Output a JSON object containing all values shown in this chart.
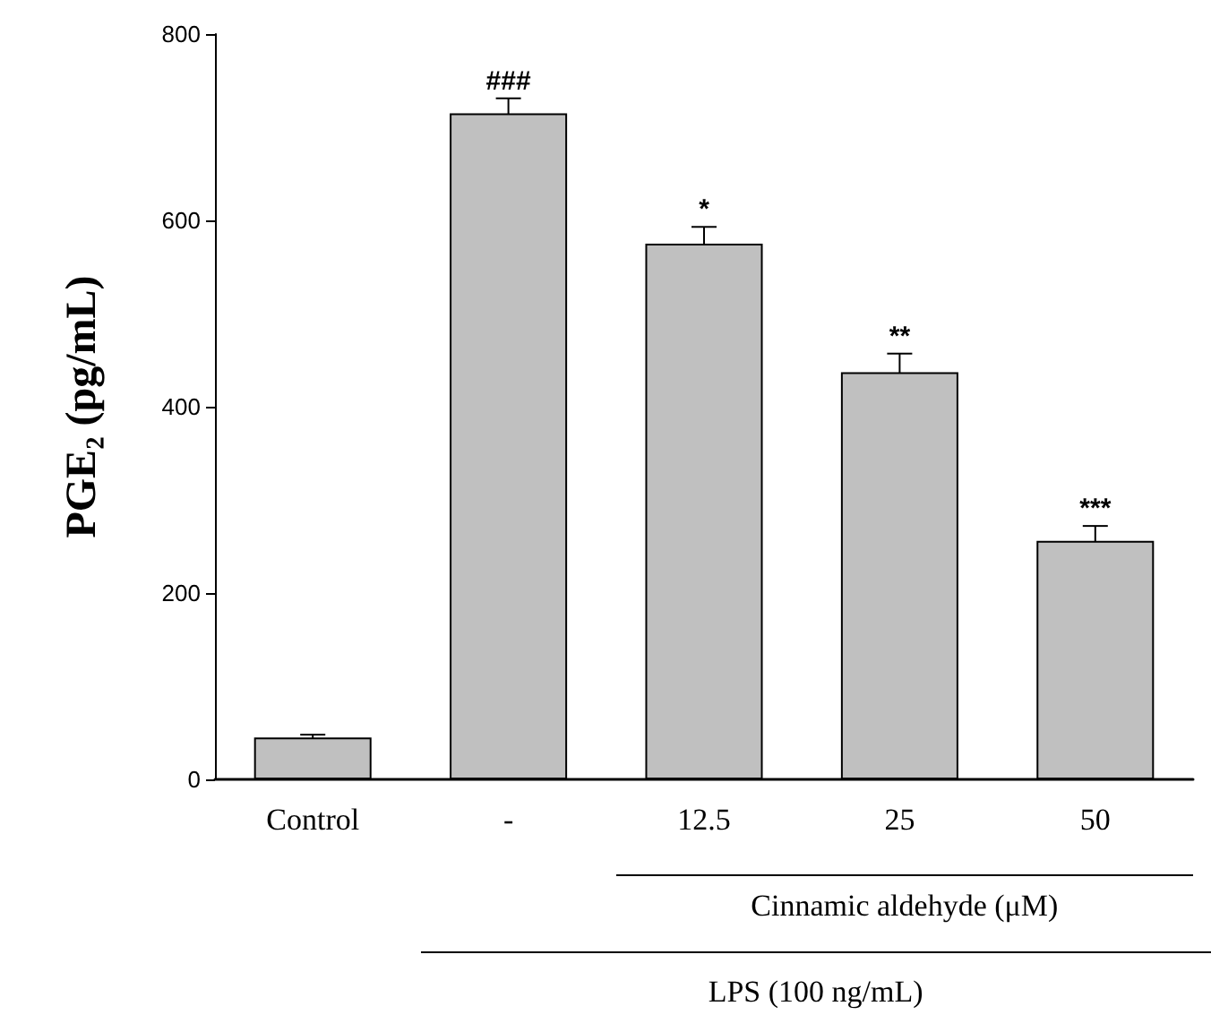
{
  "chart_data": {
    "type": "bar",
    "ylabel": "PGE₂ (pg/mL)",
    "categories": [
      "Control",
      "-",
      "12.5",
      "25",
      "50"
    ],
    "values": [
      45,
      715,
      575,
      437,
      256
    ],
    "errors": [
      3,
      16,
      18,
      20,
      16
    ],
    "color": "#c0c0c0",
    "ylim": [
      0,
      800
    ],
    "yticks": [
      0,
      200,
      400,
      600,
      800
    ],
    "grid": false,
    "annotations": [
      {
        "text": "###",
        "x": "-",
        "y": 731
      },
      {
        "text": "*",
        "x": "12.5",
        "y": 593
      },
      {
        "text": "**",
        "x": "25",
        "y": 457
      },
      {
        "text": "***",
        "x": "50",
        "y": 272
      },
      "Cinnamic aldehyde (μM)",
      "LPS (100 ng/mL)"
    ]
  }
}
